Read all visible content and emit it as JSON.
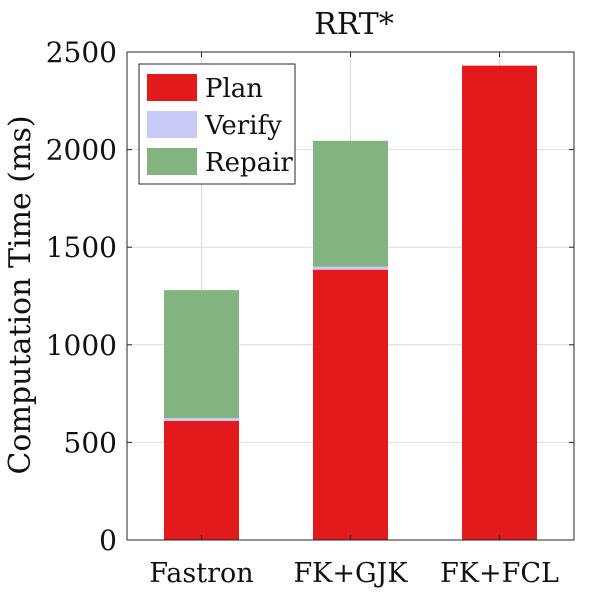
{
  "chart_data": {
    "type": "bar",
    "stacked": true,
    "title": "RRT*",
    "xlabel": "",
    "ylabel": "Computation Time (ms)",
    "categories": [
      "Fastron",
      "FK+GJK",
      "FK+FCL"
    ],
    "series": [
      {
        "name": "Plan",
        "color": "#e31a1c",
        "values": [
          610,
          1385,
          2430
        ]
      },
      {
        "name": "Verify",
        "color": "#c9c9f5",
        "values": [
          15,
          15,
          0
        ]
      },
      {
        "name": "Repair",
        "color": "#82b380",
        "values": [
          655,
          645,
          0
        ]
      }
    ],
    "ylim": [
      0,
      2500
    ],
    "yticks": [
      0,
      500,
      1000,
      1500,
      2000,
      2500
    ],
    "grid": true,
    "legend_position": "top-left"
  }
}
